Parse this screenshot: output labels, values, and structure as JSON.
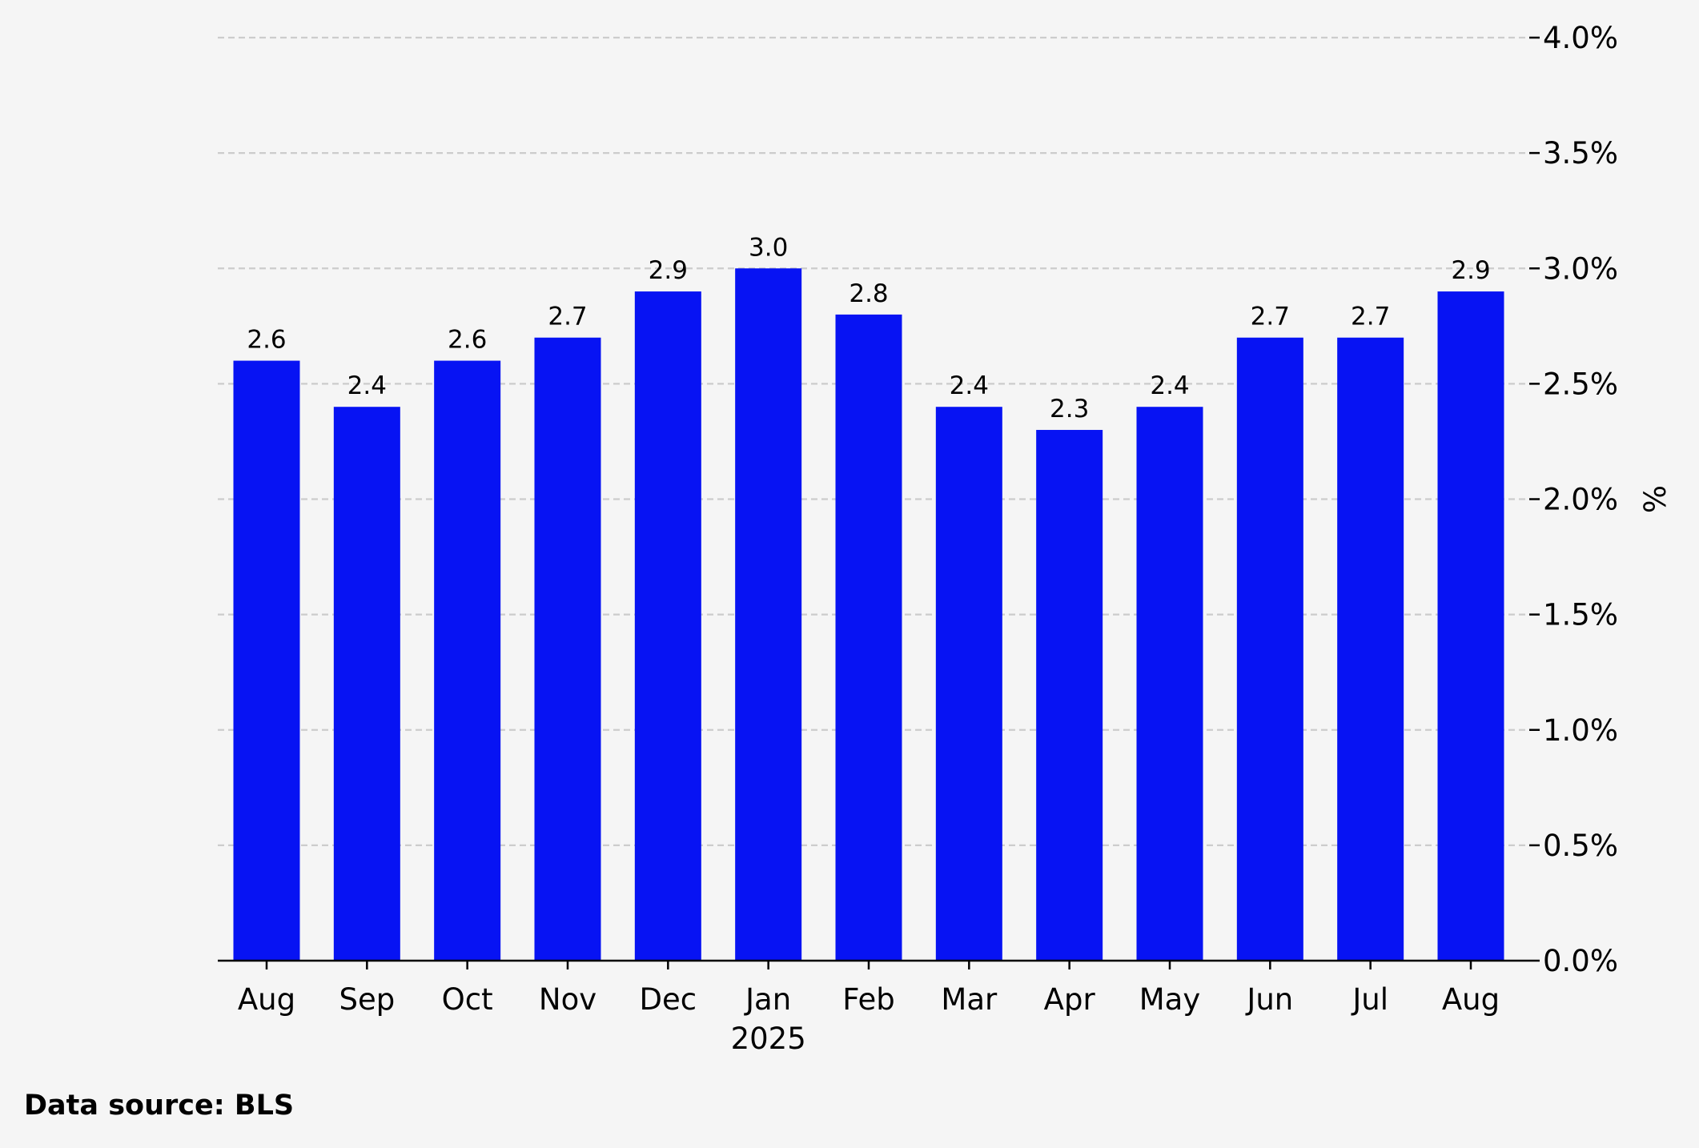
{
  "chart_data": {
    "type": "bar",
    "categories": [
      "Aug",
      "Sep",
      "Oct",
      "Nov",
      "Dec",
      "Jan",
      "Feb",
      "Mar",
      "Apr",
      "May",
      "Jun",
      "Jul",
      "Aug"
    ],
    "year_label": "2025",
    "values": [
      2.6,
      2.4,
      2.6,
      2.7,
      2.9,
      3.0,
      2.8,
      2.4,
      2.3,
      2.4,
      2.7,
      2.7,
      2.9
    ],
    "data_labels": [
      "2.6",
      "2.4",
      "2.6",
      "2.7",
      "2.9",
      "3.0",
      "2.8",
      "2.4",
      "2.3",
      "2.4",
      "2.7",
      "2.7",
      "2.9"
    ],
    "y_ticks": [
      0,
      0.5,
      1.0,
      1.5,
      2.0,
      2.5,
      3.0,
      3.5,
      4.0
    ],
    "y_tick_labels": [
      "0.0%",
      "0.5%",
      "1.0%",
      "1.5%",
      "2.0%",
      "2.5%",
      "3.0%",
      "3.5%",
      "4.0%"
    ],
    "ylabel": "%",
    "ylim": [
      0,
      4.0
    ],
    "y_axis_side": "right",
    "grid": "horizontal-dashed",
    "bar_color": "#0713f3",
    "grid_color": "#cccccc"
  },
  "footer": {
    "source": "Data source: BLS"
  }
}
